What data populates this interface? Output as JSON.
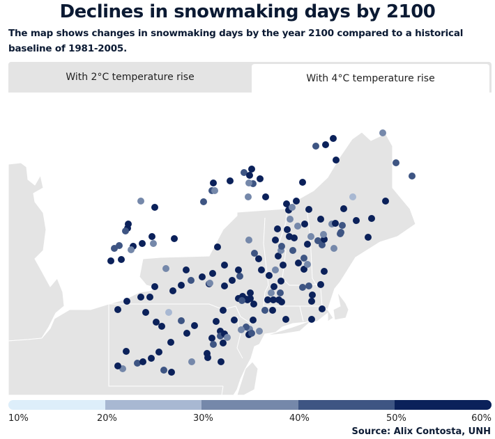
{
  "header": {
    "title": "Declines in snowmaking days by 2100",
    "subtitle": "The map shows changes in snowmaking days by the year 2100 compared to a historical baseline of 1981-2005."
  },
  "tabs": [
    {
      "label": "With 2°C temperature rise",
      "selected": false
    },
    {
      "label": "With 4°C temperature rise",
      "selected": true
    }
  ],
  "legend": {
    "colors": [
      "#ddeefa",
      "#a8b8d2",
      "#7588aa",
      "#3e5583",
      "#0b215a"
    ],
    "labels": [
      "10%",
      "20%",
      "30%",
      "40%",
      "50%",
      "60%"
    ]
  },
  "source": "Source: Alix Contosta, UNH",
  "colors": {
    "land": "#e4e4e4",
    "border": "#ffffff",
    "c20": "#a8b8d2",
    "c30": "#7588aa",
    "c40": "#3e5583",
    "c50": "#0b215a"
  },
  "chart_data": {
    "type": "map",
    "title": "Declines in snowmaking days by 2100",
    "scenario": "With 4°C temperature rise",
    "legend_bins": [
      "10-20%",
      "20-30%",
      "30-40%",
      "40-50%",
      "50-60%"
    ],
    "points": [
      [
        549,
        191,
        2
      ],
      [
        568,
        234,
        3
      ],
      [
        591,
        253,
        3
      ],
      [
        478,
        199,
        4
      ],
      [
        467,
        208,
        4
      ],
      [
        453,
        210,
        3
      ],
      [
        482,
        230,
        4
      ],
      [
        434,
        262,
        4
      ],
      [
        506,
        283,
        1
      ],
      [
        553,
        289,
        4
      ],
      [
        361,
        243,
        4
      ],
      [
        350,
        248,
        3
      ],
      [
        358,
        252,
        4
      ],
      [
        373,
        257,
        4
      ],
      [
        363,
        264,
        3
      ],
      [
        357,
        263,
        2
      ],
      [
        306,
        263,
        4
      ],
      [
        304,
        274,
        3
      ],
      [
        308,
        274,
        2
      ],
      [
        292,
        290,
        3
      ],
      [
        330,
        260,
        4
      ],
      [
        356,
        283,
        2
      ],
      [
        381,
        283,
        4
      ],
      [
        411,
        293,
        4
      ],
      [
        425,
        289,
        4
      ],
      [
        414,
        302,
        4
      ],
      [
        419,
        298,
        2
      ],
      [
        202,
        289,
        2
      ],
      [
        222,
        298,
        4
      ],
      [
        184,
        322,
        4
      ],
      [
        183,
        328,
        4
      ],
      [
        180,
        332,
        3
      ],
      [
        171,
        353,
        3
      ],
      [
        191,
        354,
        4
      ],
      [
        188,
        359,
        2
      ],
      [
        164,
        357,
        3
      ],
      [
        159,
        375,
        4
      ],
      [
        174,
        373,
        4
      ],
      [
        204,
        350,
        4
      ],
      [
        218,
        340,
        4
      ],
      [
        220,
        350,
        2
      ],
      [
        250,
        343,
        4
      ],
      [
        238,
        386,
        2
      ],
      [
        267,
        388,
        4
      ],
      [
        248,
        418,
        4
      ],
      [
        222,
        412,
        4
      ],
      [
        215,
        427,
        4
      ],
      [
        202,
        427,
        4
      ],
      [
        182,
        433,
        4
      ],
      [
        169,
        445,
        4
      ],
      [
        260,
        410,
        4
      ],
      [
        290,
        398,
        4
      ],
      [
        274,
        403,
        3
      ],
      [
        305,
        393,
        4
      ],
      [
        300,
        408,
        4
      ],
      [
        301,
        407,
        2
      ],
      [
        322,
        381,
        4
      ],
      [
        312,
        355,
        4
      ],
      [
        333,
        403,
        4
      ],
      [
        344,
        397,
        3
      ],
      [
        322,
        411,
        4
      ],
      [
        357,
        345,
        2
      ],
      [
        365,
        364,
        3
      ],
      [
        375,
        388,
        4
      ],
      [
        371,
        372,
        4
      ],
      [
        342,
        388,
        4
      ],
      [
        386,
        396,
        4
      ],
      [
        395,
        388,
        2
      ],
      [
        393,
        412,
        4
      ],
      [
        403,
        404,
        4
      ],
      [
        406,
        381,
        4
      ],
      [
        399,
        368,
        4
      ],
      [
        403,
        360,
        2
      ],
      [
        404,
        354,
        3
      ],
      [
        420,
        360,
        3
      ],
      [
        415,
        340,
        4
      ],
      [
        395,
        345,
        4
      ],
      [
        398,
        329,
        4
      ],
      [
        412,
        330,
        4
      ],
      [
        422,
        342,
        4
      ],
      [
        427,
        325,
        2
      ],
      [
        437,
        322,
        4
      ],
      [
        441,
        351,
        4
      ],
      [
        446,
        340,
        2
      ],
      [
        428,
        378,
        4
      ],
      [
        436,
        371,
        3
      ],
      [
        436,
        387,
        4
      ],
      [
        441,
        380,
        2
      ],
      [
        456,
        346,
        3
      ],
      [
        462,
        352,
        3
      ],
      [
        465,
        344,
        4
      ],
      [
        460,
        315,
        4
      ],
      [
        476,
        322,
        2
      ],
      [
        481,
        321,
        4
      ],
      [
        488,
        336,
        3
      ],
      [
        493,
        300,
        4
      ],
      [
        489,
        334,
        3
      ],
      [
        511,
        317,
        4
      ],
      [
        533,
        314,
        4
      ],
      [
        528,
        341,
        4
      ],
      [
        416,
        315,
        2
      ],
      [
        443,
        301,
        4
      ],
      [
        464,
        337,
        2
      ],
      [
        491,
        324,
        3
      ],
      [
        479,
        357,
        2
      ],
      [
        465,
        390,
        4
      ],
      [
        460,
        409,
        4
      ],
      [
        443,
        411,
        3
      ],
      [
        434,
        413,
        3
      ],
      [
        448,
        424,
        4
      ],
      [
        447,
        433,
        4
      ],
      [
        462,
        444,
        4
      ],
      [
        447,
        459,
        4
      ],
      [
        410,
        459,
        4
      ],
      [
        404,
        434,
        4
      ],
      [
        402,
        421,
        3
      ],
      [
        389,
        421,
        2
      ],
      [
        384,
        431,
        4
      ],
      [
        392,
        431,
        4
      ],
      [
        400,
        431,
        4
      ],
      [
        380,
        446,
        3
      ],
      [
        391,
        446,
        4
      ],
      [
        363,
        460,
        4
      ],
      [
        372,
        476,
        2
      ],
      [
        364,
        437,
        4
      ],
      [
        355,
        431,
        4
      ],
      [
        348,
        426,
        4
      ],
      [
        342,
        429,
        4
      ],
      [
        353,
        430,
        4
      ],
      [
        359,
        429,
        4
      ],
      [
        347,
        432,
        3
      ],
      [
        359,
        421,
        4
      ],
      [
        320,
        446,
        4
      ],
      [
        336,
        460,
        4
      ],
      [
        316,
        476,
        4
      ],
      [
        310,
        462,
        4
      ],
      [
        320,
        493,
        4
      ],
      [
        304,
        486,
        4
      ],
      [
        316,
        483,
        3
      ],
      [
        322,
        480,
        4
      ],
      [
        358,
        473,
        2
      ],
      [
        357,
        481,
        4
      ],
      [
        353,
        470,
        3
      ],
      [
        346,
        474,
        2
      ],
      [
        361,
        479,
        3
      ],
      [
        326,
        485,
        2
      ],
      [
        306,
        495,
        3
      ],
      [
        297,
        508,
        4
      ],
      [
        298,
        514,
        4
      ],
      [
        317,
        520,
        4
      ],
      [
        242,
        449,
        1
      ],
      [
        260,
        461,
        3
      ],
      [
        279,
        468,
        4
      ],
      [
        245,
        492,
        4
      ],
      [
        268,
        479,
        4
      ],
      [
        228,
        506,
        4
      ],
      [
        275,
        520,
        2
      ],
      [
        217,
        515,
        4
      ],
      [
        197,
        522,
        3
      ],
      [
        205,
        520,
        4
      ],
      [
        181,
        505,
        4
      ],
      [
        176,
        530,
        2
      ],
      [
        235,
        532,
        3
      ],
      [
        246,
        535,
        4
      ],
      [
        169,
        526,
        4
      ],
      [
        232,
        469,
        4
      ],
      [
        224,
        463,
        4
      ],
      [
        209,
        449,
        4
      ]
    ]
  }
}
